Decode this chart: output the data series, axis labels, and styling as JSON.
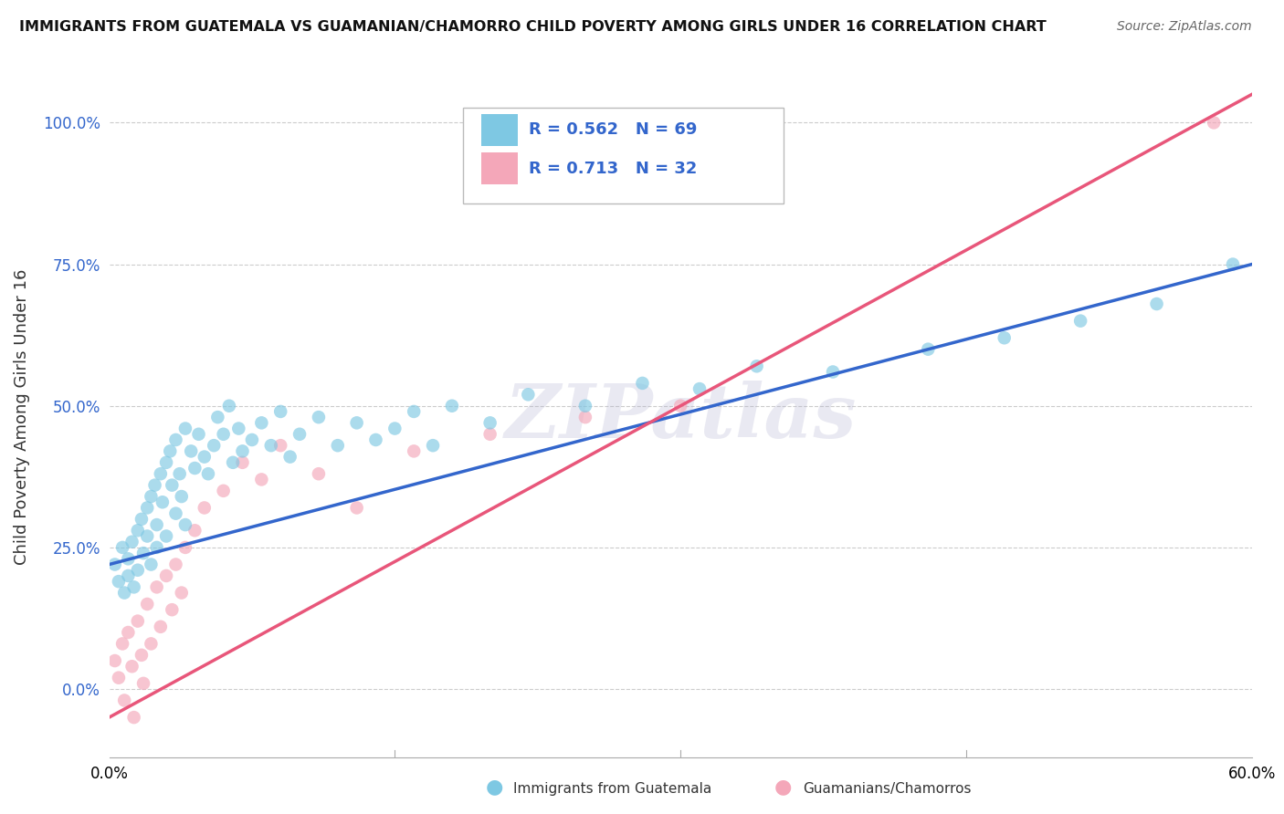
{
  "title": "IMMIGRANTS FROM GUATEMALA VS GUAMANIAN/CHAMORRO CHILD POVERTY AMONG GIRLS UNDER 16 CORRELATION CHART",
  "source": "Source: ZipAtlas.com",
  "ylabel": "Child Poverty Among Girls Under 16",
  "xlim": [
    0.0,
    0.6
  ],
  "ylim": [
    -0.12,
    1.08
  ],
  "yticks": [
    0.0,
    0.25,
    0.5,
    0.75,
    1.0
  ],
  "ytick_labels": [
    "0.0%",
    "25.0%",
    "50.0%",
    "75.0%",
    "100.0%"
  ],
  "xticks": [
    0.0,
    0.6
  ],
  "xtick_labels": [
    "0.0%",
    "60.0%"
  ],
  "watermark": "ZIPatlas",
  "legend_r1": "R = 0.562",
  "legend_n1": "N = 69",
  "legend_r2": "R = 0.713",
  "legend_n2": "N = 32",
  "blue_color": "#7EC8E3",
  "pink_color": "#F4A7B9",
  "blue_line_color": "#3366CC",
  "pink_line_color": "#E8567A",
  "legend_text_color": "#3366CC",
  "blue_scatter_x": [
    0.003,
    0.005,
    0.007,
    0.008,
    0.01,
    0.01,
    0.012,
    0.013,
    0.015,
    0.015,
    0.017,
    0.018,
    0.02,
    0.02,
    0.022,
    0.022,
    0.024,
    0.025,
    0.025,
    0.027,
    0.028,
    0.03,
    0.03,
    0.032,
    0.033,
    0.035,
    0.035,
    0.037,
    0.038,
    0.04,
    0.04,
    0.043,
    0.045,
    0.047,
    0.05,
    0.052,
    0.055,
    0.057,
    0.06,
    0.063,
    0.065,
    0.068,
    0.07,
    0.075,
    0.08,
    0.085,
    0.09,
    0.095,
    0.1,
    0.11,
    0.12,
    0.13,
    0.14,
    0.15,
    0.16,
    0.17,
    0.18,
    0.2,
    0.22,
    0.25,
    0.28,
    0.31,
    0.34,
    0.38,
    0.43,
    0.47,
    0.51,
    0.55,
    0.59
  ],
  "blue_scatter_y": [
    0.22,
    0.19,
    0.25,
    0.17,
    0.23,
    0.2,
    0.26,
    0.18,
    0.28,
    0.21,
    0.3,
    0.24,
    0.32,
    0.27,
    0.34,
    0.22,
    0.36,
    0.29,
    0.25,
    0.38,
    0.33,
    0.4,
    0.27,
    0.42,
    0.36,
    0.44,
    0.31,
    0.38,
    0.34,
    0.46,
    0.29,
    0.42,
    0.39,
    0.45,
    0.41,
    0.38,
    0.43,
    0.48,
    0.45,
    0.5,
    0.4,
    0.46,
    0.42,
    0.44,
    0.47,
    0.43,
    0.49,
    0.41,
    0.45,
    0.48,
    0.43,
    0.47,
    0.44,
    0.46,
    0.49,
    0.43,
    0.5,
    0.47,
    0.52,
    0.5,
    0.54,
    0.53,
    0.57,
    0.56,
    0.6,
    0.62,
    0.65,
    0.68,
    0.75
  ],
  "pink_scatter_x": [
    0.003,
    0.005,
    0.007,
    0.008,
    0.01,
    0.012,
    0.013,
    0.015,
    0.017,
    0.018,
    0.02,
    0.022,
    0.025,
    0.027,
    0.03,
    0.033,
    0.035,
    0.038,
    0.04,
    0.045,
    0.05,
    0.06,
    0.07,
    0.08,
    0.09,
    0.11,
    0.13,
    0.16,
    0.2,
    0.25,
    0.3,
    0.58
  ],
  "pink_scatter_y": [
    0.05,
    0.02,
    0.08,
    -0.02,
    0.1,
    0.04,
    -0.05,
    0.12,
    0.06,
    0.01,
    0.15,
    0.08,
    0.18,
    0.11,
    0.2,
    0.14,
    0.22,
    0.17,
    0.25,
    0.28,
    0.32,
    0.35,
    0.4,
    0.37,
    0.43,
    0.38,
    0.32,
    0.42,
    0.45,
    0.48,
    0.5,
    1.0
  ],
  "blue_line_x": [
    0.0,
    0.6
  ],
  "blue_line_y": [
    0.22,
    0.75
  ],
  "pink_line_x": [
    0.0,
    0.6
  ],
  "pink_line_y": [
    -0.05,
    1.05
  ],
  "background_color": "#FFFFFF",
  "grid_color": "#CCCCCC"
}
